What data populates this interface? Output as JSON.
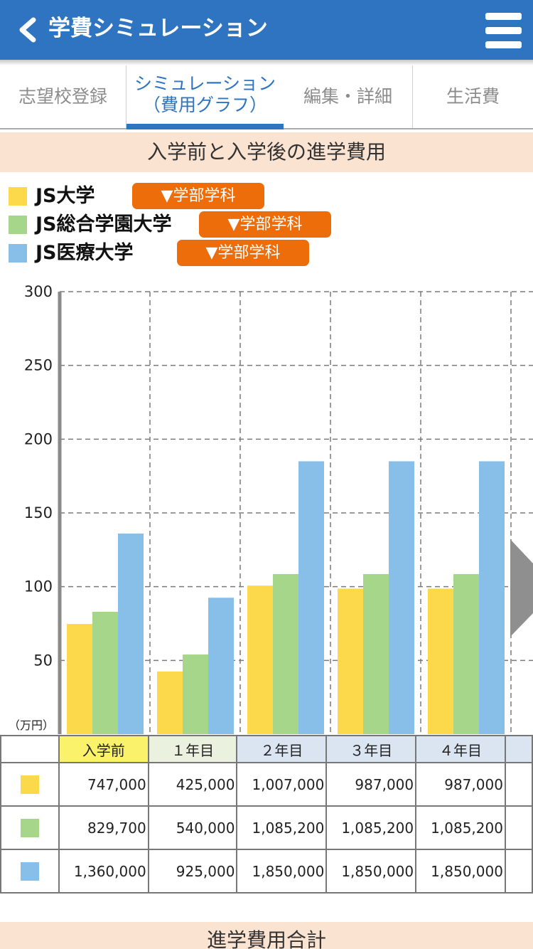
{
  "header": {
    "title": "学費シミュレーション",
    "back_icon": "chevron-left-icon",
    "menu_icon": "hamburger-menu-icon",
    "color": "#2f74c0"
  },
  "tabs": [
    {
      "label": "志望校登録",
      "active": false
    },
    {
      "label_line1": "シミュレーション",
      "label_line2": "（費用グラフ）",
      "active": true
    },
    {
      "label": "編集・詳細",
      "active": false
    },
    {
      "label": "生活費",
      "active": false
    }
  ],
  "section_title": "入学前と入学後の進学費用",
  "legend": [
    {
      "name": "JS大学",
      "color": "#fcd94b",
      "button": "▼学部学科"
    },
    {
      "name": "JS総合学園大学",
      "color": "#a5d68a",
      "button": "▼学部学科"
    },
    {
      "name": "JS医療大学",
      "color": "#88bfe8",
      "button": "▼学部学科"
    }
  ],
  "chart_data": {
    "type": "bar",
    "categories": [
      "入学前",
      "1年目",
      "2年目",
      "3年目",
      "4年目"
    ],
    "series": [
      {
        "name": "JS大学",
        "color": "#fcd94b",
        "values": [
          74.7,
          42.5,
          100.7,
          98.7,
          98.7
        ]
      },
      {
        "name": "JS総合学園大学",
        "color": "#a5d68a",
        "values": [
          82.97,
          54.0,
          108.52,
          108.52,
          108.52
        ]
      },
      {
        "name": "JS医療大学",
        "color": "#88bfe8",
        "values": [
          136.0,
          92.5,
          185.0,
          185.0,
          185.0
        ]
      }
    ],
    "ylim": [
      0,
      300
    ],
    "yticks": [
      50,
      100,
      150,
      200,
      250,
      300
    ],
    "ylabel": "（万円）",
    "grid": true
  },
  "table": {
    "headers": [
      "入学前",
      "１年目",
      "２年目",
      "３年目",
      "４年目"
    ],
    "header_colors": [
      "#fbf26c",
      "#eaf1de",
      "#dbe5f1",
      "#dbe5f1",
      "#dbe5f1"
    ],
    "rows": [
      {
        "color": "#fcd94b",
        "values": [
          "747,000",
          "425,000",
          "1,007,000",
          "987,000",
          "987,000"
        ]
      },
      {
        "color": "#a5d68a",
        "values": [
          "829,700",
          "540,000",
          "1,085,200",
          "1,085,200",
          "1,085,200"
        ]
      },
      {
        "color": "#88bfe8",
        "values": [
          "1,360,000",
          "925,000",
          "1,850,000",
          "1,850,000",
          "1,850,000"
        ]
      }
    ]
  },
  "next_arrow_icon": "chevron-right-icon",
  "bottom_title": "進学費用合計"
}
